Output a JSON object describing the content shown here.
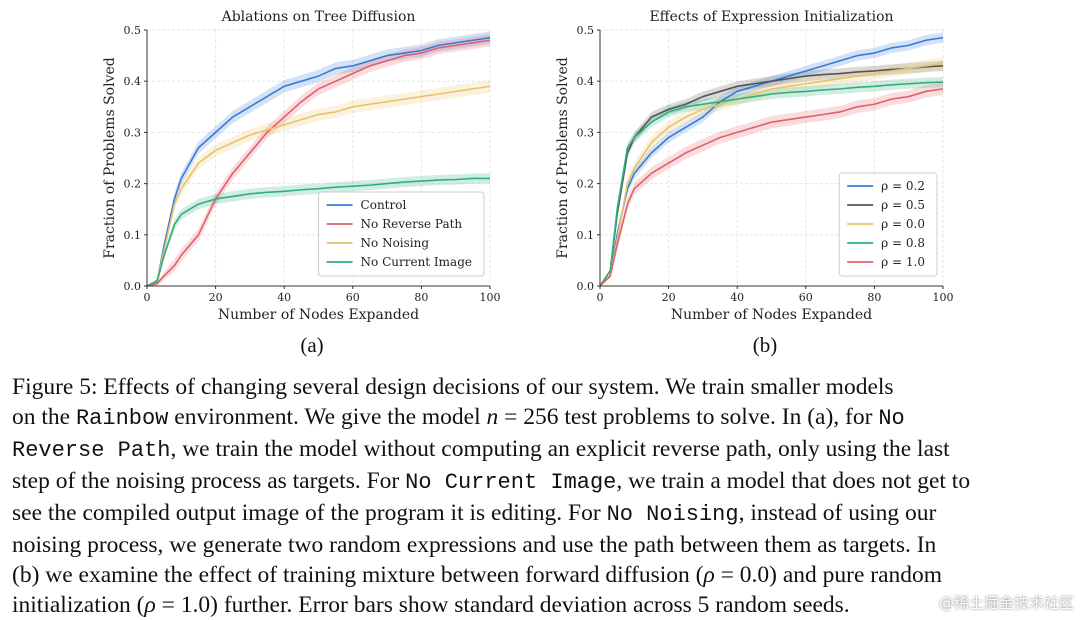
{
  "chart_data": [
    {
      "type": "line",
      "title": "Ablations on Tree Diffusion",
      "xlabel": "Number of Nodes Expanded",
      "ylabel": "Fraction of Problems Solved",
      "xlim": [
        0,
        100
      ],
      "ylim": [
        0,
        0.5
      ],
      "xticks": [
        "0",
        "20",
        "40",
        "60",
        "80",
        "100"
      ],
      "yticks": [
        "0.0",
        "0.1",
        "0.2",
        "0.3",
        "0.4",
        "0.5"
      ],
      "grid": true,
      "legend": "lower-right",
      "x": [
        0,
        3,
        5,
        8,
        10,
        15,
        20,
        25,
        30,
        35,
        40,
        45,
        50,
        55,
        60,
        65,
        70,
        75,
        80,
        85,
        90,
        95,
        100
      ],
      "series": [
        {
          "name": "Control",
          "color": "#3a7bd5",
          "band": 0.012,
          "values": [
            0,
            0.01,
            0.08,
            0.17,
            0.21,
            0.27,
            0.3,
            0.33,
            0.35,
            0.37,
            0.39,
            0.4,
            0.41,
            0.425,
            0.43,
            0.44,
            0.45,
            0.455,
            0.46,
            0.47,
            0.475,
            0.48,
            0.485
          ]
        },
        {
          "name": "No Reverse Path",
          "color": "#e0606b",
          "band": 0.012,
          "values": [
            0,
            0.005,
            0.02,
            0.04,
            0.06,
            0.1,
            0.17,
            0.22,
            0.26,
            0.3,
            0.33,
            0.36,
            0.385,
            0.4,
            0.415,
            0.43,
            0.44,
            0.45,
            0.455,
            0.465,
            0.47,
            0.475,
            0.48
          ]
        },
        {
          "name": "No Noising",
          "color": "#e8c36a",
          "band": 0.012,
          "values": [
            0,
            0.01,
            0.07,
            0.16,
            0.19,
            0.24,
            0.265,
            0.28,
            0.295,
            0.305,
            0.315,
            0.325,
            0.335,
            0.34,
            0.35,
            0.355,
            0.36,
            0.365,
            0.37,
            0.375,
            0.38,
            0.385,
            0.39
          ]
        },
        {
          "name": "No Current Image",
          "color": "#2eaf7d",
          "band": 0.01,
          "values": [
            0,
            0.01,
            0.06,
            0.12,
            0.14,
            0.16,
            0.17,
            0.175,
            0.18,
            0.183,
            0.185,
            0.188,
            0.19,
            0.193,
            0.195,
            0.197,
            0.2,
            0.203,
            0.205,
            0.207,
            0.208,
            0.21,
            0.21
          ]
        }
      ]
    },
    {
      "type": "line",
      "title": "Effects of Expression Initialization",
      "xlabel": "Number of Nodes Expanded",
      "ylabel": "Fraction of Problems Solved",
      "xlim": [
        0,
        100
      ],
      "ylim": [
        0,
        0.5
      ],
      "xticks": [
        "0",
        "20",
        "40",
        "60",
        "80",
        "100"
      ],
      "yticks": [
        "0.0",
        "0.1",
        "0.2",
        "0.3",
        "0.4",
        "0.5"
      ],
      "grid": true,
      "legend": "lower-right",
      "x": [
        0,
        3,
        5,
        8,
        10,
        15,
        20,
        25,
        30,
        35,
        40,
        45,
        50,
        55,
        60,
        65,
        70,
        75,
        80,
        85,
        90,
        95,
        100
      ],
      "series": [
        {
          "name": "ρ = 0.2",
          "color": "#3a7bd5",
          "band": 0.01,
          "values": [
            0,
            0.02,
            0.1,
            0.19,
            0.22,
            0.26,
            0.29,
            0.31,
            0.33,
            0.36,
            0.38,
            0.39,
            0.4,
            0.41,
            0.42,
            0.43,
            0.44,
            0.45,
            0.455,
            0.465,
            0.47,
            0.48,
            0.485
          ]
        },
        {
          "name": "ρ = 0.5",
          "color": "#555555",
          "band": 0.01,
          "values": [
            0,
            0.03,
            0.14,
            0.26,
            0.29,
            0.33,
            0.345,
            0.355,
            0.37,
            0.38,
            0.39,
            0.395,
            0.4,
            0.405,
            0.41,
            0.413,
            0.415,
            0.418,
            0.42,
            0.423,
            0.425,
            0.428,
            0.43
          ]
        },
        {
          "name": "ρ = 0.0",
          "color": "#e8c36a",
          "band": 0.012,
          "values": [
            0,
            0.02,
            0.09,
            0.2,
            0.23,
            0.28,
            0.31,
            0.33,
            0.345,
            0.355,
            0.365,
            0.375,
            0.385,
            0.39,
            0.395,
            0.4,
            0.405,
            0.41,
            0.415,
            0.42,
            0.425,
            0.43,
            0.435
          ]
        },
        {
          "name": "ρ = 0.8",
          "color": "#2eaf7d",
          "band": 0.01,
          "values": [
            0,
            0.03,
            0.15,
            0.27,
            0.29,
            0.32,
            0.34,
            0.35,
            0.355,
            0.36,
            0.365,
            0.37,
            0.375,
            0.378,
            0.38,
            0.383,
            0.385,
            0.388,
            0.39,
            0.393,
            0.395,
            0.397,
            0.398
          ]
        },
        {
          "name": "ρ = 1.0",
          "color": "#e0606b",
          "band": 0.012,
          "values": [
            0,
            0.02,
            0.08,
            0.16,
            0.19,
            0.22,
            0.24,
            0.26,
            0.275,
            0.29,
            0.3,
            0.31,
            0.32,
            0.325,
            0.33,
            0.335,
            0.34,
            0.35,
            0.355,
            0.365,
            0.37,
            0.38,
            0.385
          ]
        }
      ]
    }
  ],
  "subcaptions": [
    "(a)",
    "(b)"
  ],
  "caption": {
    "lines": [
      [
        {
          "t": "Figure 5: Effects of changing several design decisions of our system. We train smaller models"
        }
      ],
      [
        {
          "t": "on the "
        },
        {
          "t": "Rainbow",
          "s": "mono"
        },
        {
          "t": " environment. We give the model "
        },
        {
          "t": "n",
          "s": "math"
        },
        {
          "t": " = 256 test problems to solve. In (a), for "
        },
        {
          "t": "No",
          "s": "mono"
        }
      ],
      [
        {
          "t": "Reverse Path",
          "s": "mono"
        },
        {
          "t": ", we train the model without computing an explicit reverse path, only using the last"
        }
      ],
      [
        {
          "t": "step of the noising process as targets. For "
        },
        {
          "t": "No Current Image",
          "s": "mono"
        },
        {
          "t": ", we train a model that does not get to"
        }
      ],
      [
        {
          "t": "see the compiled output image of the program it is editing. For "
        },
        {
          "t": "No Noising",
          "s": "mono"
        },
        {
          "t": ", instead of using our"
        }
      ],
      [
        {
          "t": "noising process, we generate two random expressions and use the path between them as targets. In"
        }
      ],
      [
        {
          "t": "(b) we examine the effect of training mixture between forward diffusion ("
        },
        {
          "t": "ρ",
          "s": "math"
        },
        {
          "t": " = 0.0) and pure random"
        }
      ],
      [
        {
          "t": "initialization ("
        },
        {
          "t": "ρ",
          "s": "math"
        },
        {
          "t": " = 1.0) further. Error bars show standard deviation across 5 random seeds."
        }
      ]
    ]
  },
  "watermark": "@稀土掘金技术社区"
}
